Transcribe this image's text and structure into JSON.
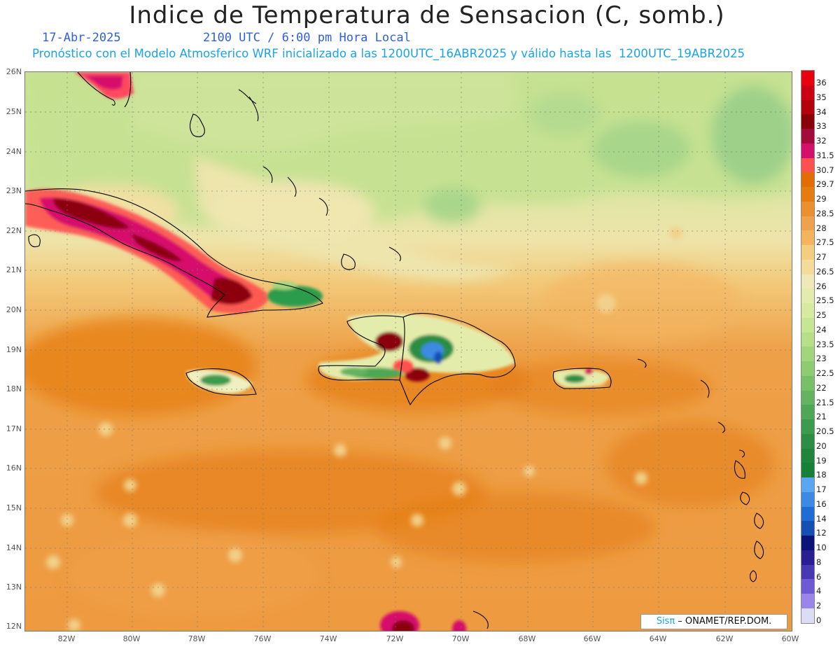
{
  "header": {
    "title": "Indice de Temperatura de Sensacion (C, somb.)",
    "date": "17-Abr-2025",
    "valid_time": "2100 UTC / 6:00 pm Hora Local",
    "model_info": "Pronóstico con el Modelo Atmosferico WRF inicializado a las 1200UTC_16ABR2025 y válido hasta las  1200UTC_19ABR2025"
  },
  "axes": {
    "lat_labels": [
      "26N",
      "25N",
      "24N",
      "23N",
      "22N",
      "21N",
      "20N",
      "19N",
      "18N",
      "17N",
      "16N",
      "15N",
      "14N",
      "13N",
      "12N"
    ],
    "lon_labels": [
      "82W",
      "80W",
      "78W",
      "76W",
      "74W",
      "72W",
      "70W",
      "68W",
      "66W",
      "64W",
      "62W",
      "60W"
    ]
  },
  "colorbar": {
    "labels": [
      "36",
      "35",
      "34",
      "33",
      "32",
      "31.5",
      "30.7",
      "29.7",
      "29",
      "28.5",
      "28",
      "27.5",
      "27",
      "26.5",
      "26",
      "25.5",
      "25",
      "24",
      "23.5",
      "23",
      "22.5",
      "22",
      "21.5",
      "21",
      "20.5",
      "20",
      "19",
      "18",
      "17",
      "16",
      "14",
      "12",
      "10",
      "8",
      "6",
      "4",
      "2",
      "0"
    ],
    "colors": [
      "#e8000f",
      "#cc0010",
      "#b5000e",
      "#8c0008",
      "#a50a3c",
      "#d6106a",
      "#ff5050",
      "#e26d00",
      "#e57c0f",
      "#ea902e",
      "#f0a24a",
      "#f4b45c",
      "#f2ce7e",
      "#f3dc9a",
      "#efe8b8",
      "#e4ecab",
      "#d6eba0",
      "#c6e694",
      "#b6df88",
      "#a2d67c",
      "#8ecc72",
      "#78c068",
      "#62b45e",
      "#4ea755",
      "#3c9b4c",
      "#2b8e43",
      "#1f853d",
      "#178038",
      "#5aa6f2",
      "#3c8ae6",
      "#1e6cd4",
      "#1450b4",
      "#0a1478",
      "#2a1e94",
      "#4838b4",
      "#6e5ad4",
      "#9a86ea",
      "#dcdcf4"
    ]
  },
  "credit": {
    "brand": "Sisπ",
    "text": " – ONAMET/REP.DOM."
  }
}
